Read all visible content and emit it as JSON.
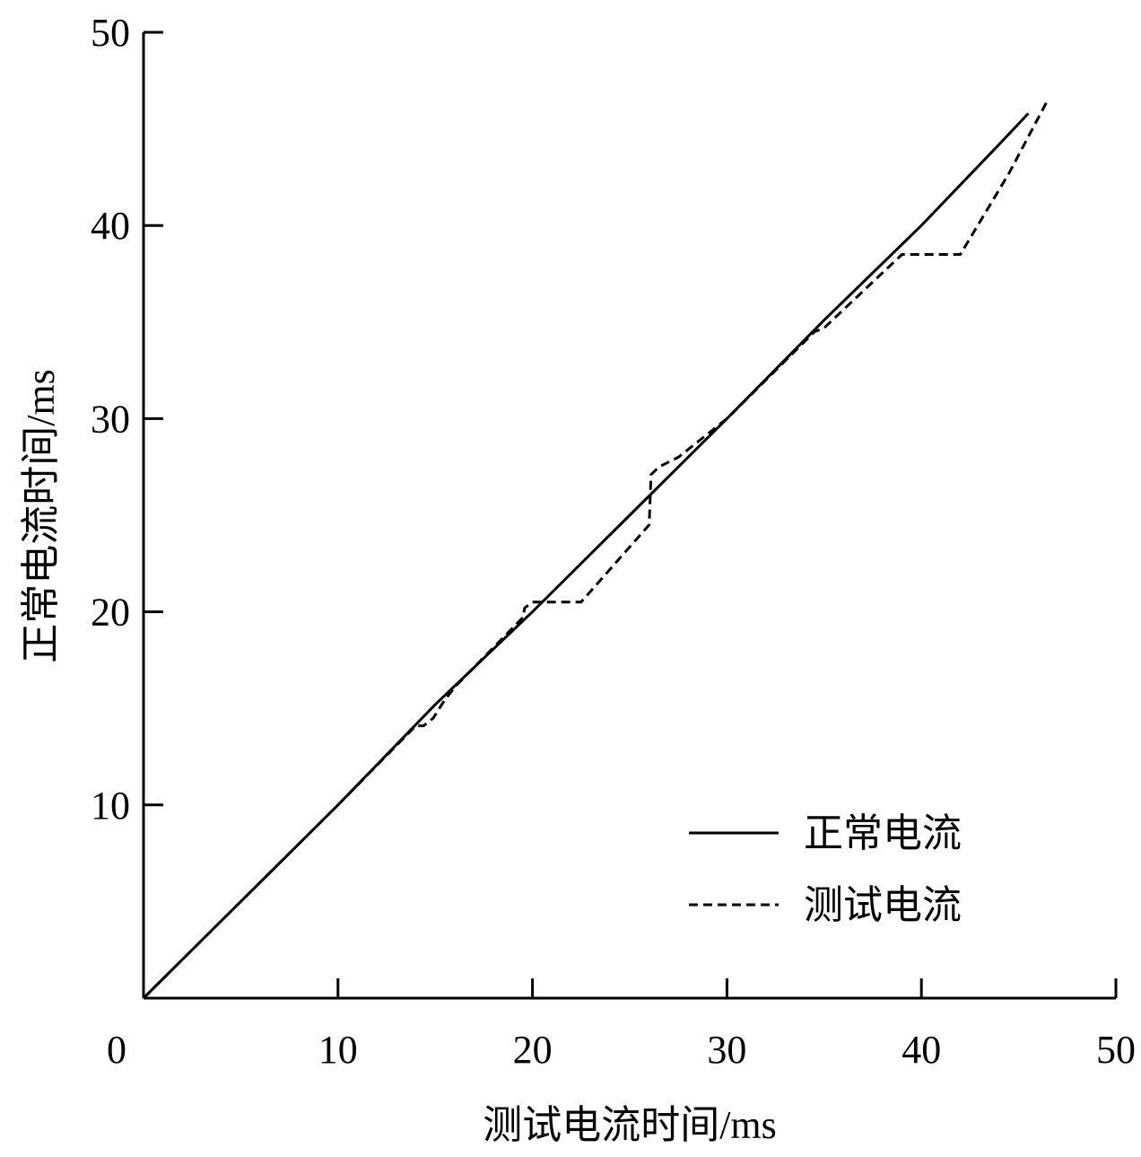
{
  "chart_data": {
    "type": "line",
    "xlabel": "测试电流时间/ms",
    "ylabel": "正常电流时间/ms",
    "xlim": [
      0,
      50
    ],
    "ylim": [
      0,
      50
    ],
    "x_ticks": [
      "0",
      "10",
      "20",
      "30",
      "40",
      "50"
    ],
    "y_ticks": [
      "10",
      "20",
      "30",
      "40",
      "50"
    ],
    "grid": false,
    "legend_position": "bottom-right",
    "series": [
      {
        "name": "正常电流",
        "style": "solid",
        "color": "#000000",
        "x": [
          0,
          1.5,
          5,
          10,
          15,
          20,
          25,
          30,
          35,
          40,
          44,
          45.5
        ],
        "y": [
          0,
          1.5,
          5,
          10,
          15.2,
          20,
          25,
          30,
          35.1,
          40,
          44.2,
          45.8
        ]
      },
      {
        "name": "测试电流",
        "style": "dashed",
        "color": "#000000",
        "x": [
          0,
          5,
          10,
          14,
          14.4,
          14.9,
          15.4,
          16,
          19.5,
          19.6,
          20,
          20.3,
          22.5,
          26,
          26.1,
          26.5,
          27.5,
          30,
          34.5,
          35,
          39,
          42,
          44.5,
          46.5
        ],
        "y": [
          0,
          5,
          10,
          14.1,
          14.1,
          14.5,
          15.3,
          16.1,
          19.7,
          20.2,
          20.5,
          20.5,
          20.5,
          24.5,
          27.1,
          27.5,
          28,
          30,
          34.5,
          34.7,
          38.5,
          38.5,
          42.7,
          46.5
        ]
      }
    ]
  }
}
